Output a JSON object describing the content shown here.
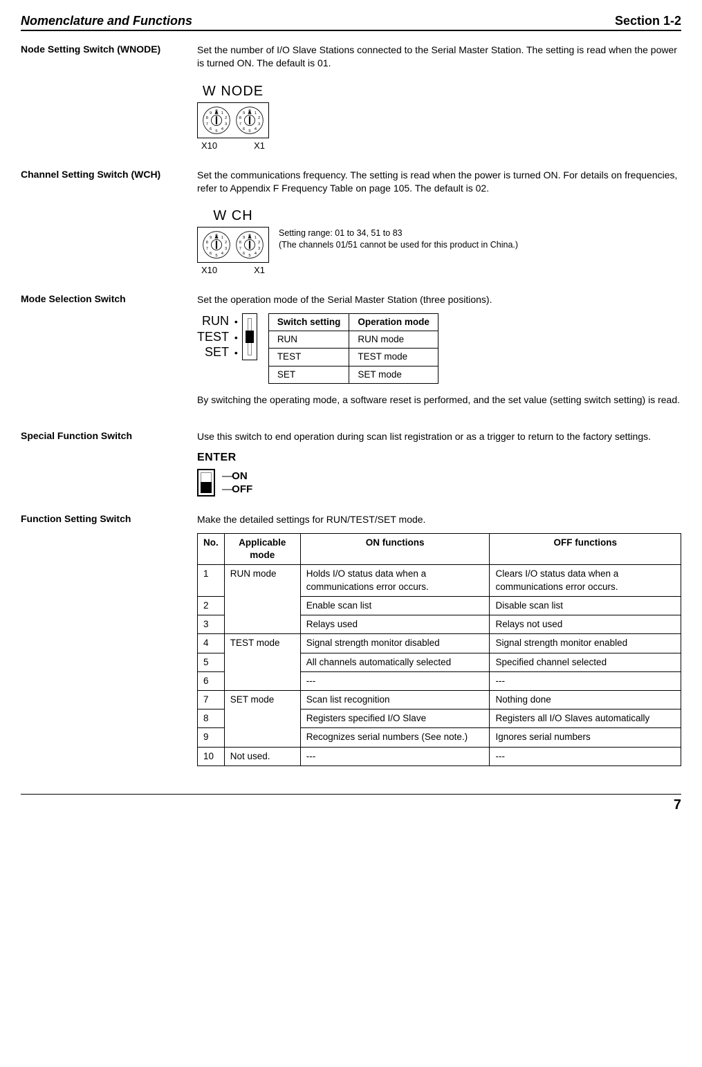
{
  "header": {
    "left": "Nomenclature and Functions",
    "right": "Section 1-2"
  },
  "page_number": "7",
  "sections": {
    "wnode": {
      "heading": "Node Setting Switch (WNODE)",
      "body": "Set the number of I/O Slave Stations connected to the Serial Master Station. The setting is read when the power is turned ON. The default is 01.",
      "dial_title": "W NODE",
      "label_left": "X10",
      "label_right": "X1"
    },
    "wch": {
      "heading": "Channel Setting Switch (WCH)",
      "body": "Set the communications frequency. The setting is read when the power is turned ON. For details on frequencies, refer to Appendix F Frequency Table on page 105. The default is 02.",
      "dial_title": "W CH",
      "label_left": "X10",
      "label_right": "X1",
      "range_line1": "Setting range: 01 to 34, 51 to 83",
      "range_line2": "(The channels 01/51 cannot be used for this product in China.)"
    },
    "mode": {
      "heading": "Mode Selection Switch",
      "body": "Set the operation mode of the Serial Master Station (three positions).",
      "labels": {
        "run": "RUN",
        "test": "TEST",
        "set": "SET"
      },
      "table_head": {
        "col1": "Switch setting",
        "col2": "Operation mode"
      },
      "rows": [
        {
          "setting": "RUN",
          "mode": "RUN mode"
        },
        {
          "setting": "TEST",
          "mode": "TEST mode"
        },
        {
          "setting": "SET",
          "mode": "SET mode"
        }
      ],
      "after": "By switching the operating mode, a software reset is performed, and the set value (setting switch setting) is read."
    },
    "special": {
      "heading": "Special Function Switch",
      "body": "Use this switch to end operation during scan list registration or as a trigger to return to the factory settings.",
      "enter_title": "ENTER",
      "on": "ON",
      "off": "OFF"
    },
    "func": {
      "heading": "Function Setting Switch",
      "body": "Make the detailed settings for RUN/TEST/SET mode.",
      "head": {
        "no": "No.",
        "mode": "Applicable mode",
        "on": "ON functions",
        "off": "OFF functions"
      },
      "rows": [
        {
          "no": "1",
          "mode": "RUN mode",
          "on": "Holds I/O status data when a communications error occurs.",
          "off": "Clears I/O status data when a communications error occurs."
        },
        {
          "no": "2",
          "mode": "",
          "on": "Enable scan list",
          "off": "Disable scan list"
        },
        {
          "no": "3",
          "mode": "",
          "on": "Relays used",
          "off": "Relays not used"
        },
        {
          "no": "4",
          "mode": "TEST mode",
          "on": "Signal strength monitor disabled",
          "off": "Signal strength monitor enabled"
        },
        {
          "no": "5",
          "mode": "",
          "on": "All channels automatically selected",
          "off": "Specified channel selected"
        },
        {
          "no": "6",
          "mode": "",
          "on": "---",
          "off": "---"
        },
        {
          "no": "7",
          "mode": "SET mode",
          "on": "Scan list recognition",
          "off": "Nothing done"
        },
        {
          "no": "8",
          "mode": "",
          "on": "Registers specified I/O Slave",
          "off": "Registers all I/O Slaves automatically"
        },
        {
          "no": "9",
          "mode": "",
          "on": "Recognizes serial numbers (See note.)",
          "off": "Ignores serial numbers"
        },
        {
          "no": "10",
          "mode": "Not used.",
          "on": "---",
          "off": "---"
        }
      ]
    }
  },
  "dial_digits": [
    "0",
    "1",
    "2",
    "3",
    "4",
    "5",
    "6",
    "7",
    "8",
    "9"
  ],
  "colors": {
    "text": "#000000",
    "bg": "#ffffff",
    "border": "#000000"
  }
}
